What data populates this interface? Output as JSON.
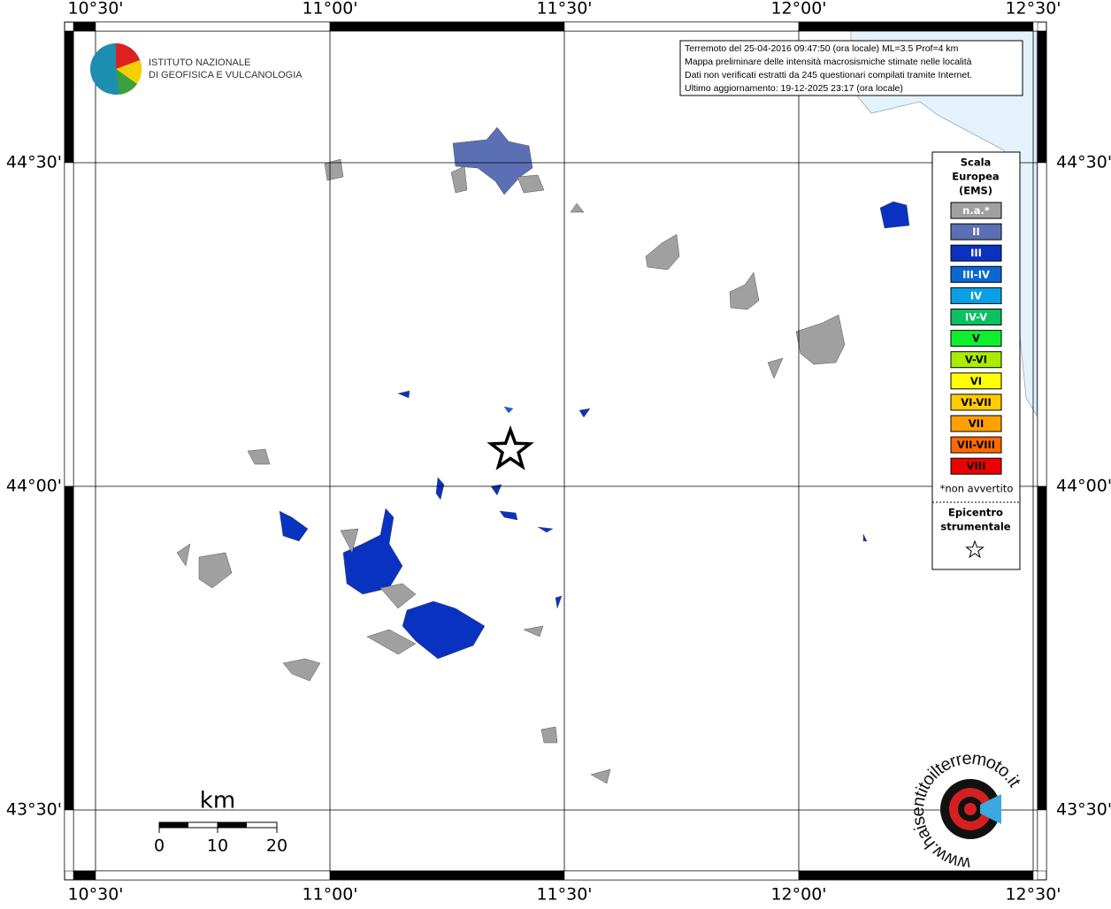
{
  "map": {
    "lon_ticks": [
      {
        "value": 10.5,
        "label": "10°30'"
      },
      {
        "value": 11.0,
        "label": "11°00'"
      },
      {
        "value": 11.5,
        "label": "11°30'"
      },
      {
        "value": 12.0,
        "label": "12°00'"
      },
      {
        "value": 12.5,
        "label": "12°30'"
      }
    ],
    "lat_ticks": [
      {
        "value": 44.5,
        "label": "44°30'"
      },
      {
        "value": 44.0,
        "label": "44°00'"
      },
      {
        "value": 43.5,
        "label": "43°30'"
      }
    ],
    "epicenter": {
      "lon": 11.385,
      "lat": 44.056
    },
    "info": [
      "Terremoto del 25-04-2016 09:47:50 (ora locale) ML=3.5 Prof=4 km",
      "Mappa preliminare delle intensità macrosismiche stimate nelle località",
      "Dati non verificati estratti da 245 questionari compilati tramite Internet.",
      "Ultimo aggiornamento: 19-12-2025 23:17 (ora locale)"
    ],
    "logo": [
      "ISTITUTO NAZIONALE",
      "DI GEOFISICA E VULCANOLOGIA"
    ],
    "legend": {
      "title": [
        "Scala",
        "Europea",
        "(EMS)"
      ],
      "items": [
        {
          "label": "n.a.*",
          "color": "#a0a0a0"
        },
        {
          "label": "II",
          "color": "#5b6fb5"
        },
        {
          "label": "III",
          "color": "#0a32c0"
        },
        {
          "label": "III-IV",
          "color": "#0a68d2"
        },
        {
          "label": "IV",
          "color": "#0aa0e6"
        },
        {
          "label": "IV-V",
          "color": "#0ac060"
        },
        {
          "label": "V",
          "color": "#10ee30"
        },
        {
          "label": "V-VI",
          "color": "#a8ec00"
        },
        {
          "label": "VI",
          "color": "#ffff00"
        },
        {
          "label": "VI-VII",
          "color": "#ffcc00"
        },
        {
          "label": "VII",
          "color": "#ffa000"
        },
        {
          "label": "VII-VIII",
          "color": "#ff6a00"
        },
        {
          "label": "VIII",
          "color": "#ee0000"
        }
      ],
      "note": "*non avvertito",
      "epicenter_title": [
        "Epicentro",
        "strumentale"
      ]
    },
    "scale": {
      "unit": "km",
      "labels": [
        "0",
        "10",
        "20"
      ]
    },
    "site": "www.haisentitoilterremoto.it"
  }
}
